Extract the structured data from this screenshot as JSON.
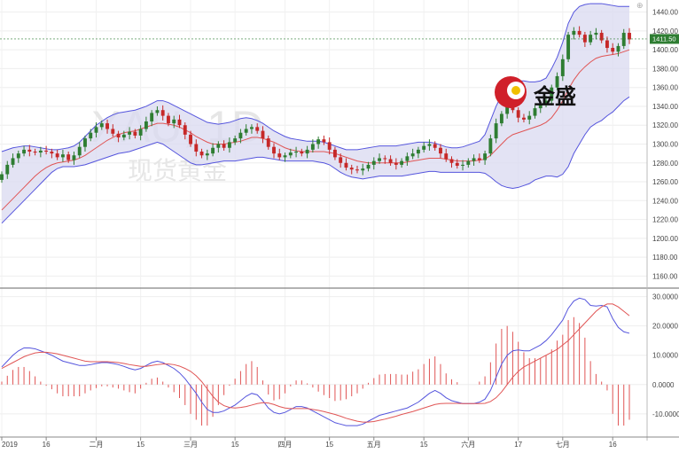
{
  "watermark": {
    "symbol": "XAU, 1D",
    "name": "现货黄金"
  },
  "logo": {
    "text": "金盛"
  },
  "top_right_glyph": "⊕",
  "colors": {
    "up": "#2e7d32",
    "down": "#c62828",
    "band_fill": "#d9d9f0",
    "band_line": "#5555dd",
    "ma_line": "#e05555",
    "macd_line": "#5555dd",
    "signal_line": "#e05555",
    "hist": "#e05555",
    "last_price": "#2e7d32"
  },
  "chart_data": [
    {
      "type": "candlestick",
      "overlay": [
        "bollinger_bands",
        "moving_average"
      ],
      "last_price_label": "1411.50",
      "y_ticks": [
        "1440.00",
        "1420.00",
        "1400.00",
        "1380.00",
        "1360.00",
        "1340.00",
        "1320.00",
        "1300.00",
        "1280.00",
        "1260.00",
        "1240.00",
        "1220.00",
        "1200.00",
        "1180.00",
        "1160.00"
      ],
      "ylim": [
        1150,
        1450
      ],
      "x_ticks": [
        "2019",
        "16",
        "二月",
        "15",
        "三月",
        "15",
        "四月",
        "15",
        "五月",
        "15",
        "六月",
        "17",
        "七月",
        "16"
      ],
      "closes": [
        1268,
        1278,
        1285,
        1290,
        1294,
        1292,
        1291,
        1293,
        1292,
        1290,
        1286,
        1289,
        1283,
        1288,
        1297,
        1306,
        1312,
        1318,
        1322,
        1316,
        1311,
        1307,
        1310,
        1313,
        1309,
        1316,
        1324,
        1333,
        1336,
        1330,
        1322,
        1326,
        1320,
        1310,
        1300,
        1292,
        1288,
        1290,
        1296,
        1300,
        1296,
        1302,
        1306,
        1312,
        1316,
        1318,
        1314,
        1306,
        1297,
        1290,
        1286,
        1288,
        1291,
        1292,
        1290,
        1294,
        1300,
        1305,
        1302,
        1294,
        1286,
        1280,
        1275,
        1273,
        1272,
        1274,
        1278,
        1282,
        1285,
        1284,
        1280,
        1278,
        1282,
        1287,
        1290,
        1294,
        1298,
        1300,
        1296,
        1290,
        1284,
        1280,
        1277,
        1278,
        1282,
        1285,
        1283,
        1290,
        1306,
        1322,
        1332,
        1340,
        1336,
        1328,
        1326,
        1330,
        1338,
        1342,
        1346,
        1360,
        1372,
        1390,
        1416,
        1420,
        1416,
        1408,
        1416,
        1418,
        1410,
        1402,
        1398,
        1404,
        1418,
        1411
      ],
      "bollinger_upper": [
        1292,
        1294,
        1296,
        1297,
        1298,
        1298,
        1297,
        1296,
        1295,
        1294,
        1294,
        1295,
        1296,
        1298,
        1302,
        1308,
        1314,
        1320,
        1324,
        1328,
        1331,
        1333,
        1334,
        1335,
        1336,
        1338,
        1340,
        1343,
        1346,
        1346,
        1344,
        1341,
        1338,
        1335,
        1332,
        1329,
        1326,
        1323,
        1322,
        1321,
        1322,
        1323,
        1325,
        1327,
        1328,
        1327,
        1325,
        1322,
        1318,
        1314,
        1311,
        1308,
        1306,
        1305,
        1304,
        1303,
        1303,
        1303,
        1302,
        1300,
        1298,
        1296,
        1294,
        1294,
        1294,
        1295,
        1296,
        1297,
        1298,
        1298,
        1298,
        1298,
        1299,
        1300,
        1301,
        1302,
        1302,
        1302,
        1301,
        1299,
        1297,
        1296,
        1296,
        1297,
        1299,
        1301,
        1303,
        1310,
        1325,
        1340,
        1352,
        1362,
        1366,
        1367,
        1367,
        1366,
        1366,
        1367,
        1370,
        1380,
        1392,
        1408,
        1428,
        1440,
        1446,
        1448,
        1449,
        1449,
        1449,
        1448,
        1447,
        1446,
        1446,
        1446
      ],
      "bollinger_lower": [
        1216,
        1222,
        1228,
        1234,
        1240,
        1246,
        1252,
        1258,
        1264,
        1270,
        1274,
        1276,
        1276,
        1276,
        1277,
        1278,
        1280,
        1282,
        1284,
        1286,
        1288,
        1290,
        1291,
        1292,
        1294,
        1296,
        1298,
        1300,
        1302,
        1300,
        1296,
        1292,
        1288,
        1284,
        1280,
        1278,
        1278,
        1279,
        1280,
        1281,
        1282,
        1282,
        1282,
        1283,
        1284,
        1285,
        1286,
        1286,
        1285,
        1284,
        1283,
        1282,
        1282,
        1282,
        1282,
        1282,
        1282,
        1281,
        1280,
        1278,
        1274,
        1270,
        1267,
        1265,
        1264,
        1263,
        1264,
        1265,
        1266,
        1266,
        1266,
        1266,
        1266,
        1267,
        1268,
        1269,
        1270,
        1271,
        1271,
        1270,
        1270,
        1270,
        1270,
        1270,
        1270,
        1270,
        1270,
        1269,
        1265,
        1260,
        1256,
        1254,
        1253,
        1254,
        1256,
        1258,
        1262,
        1264,
        1266,
        1266,
        1265,
        1268,
        1276,
        1290,
        1300,
        1310,
        1318,
        1322,
        1325,
        1330,
        1334,
        1340,
        1346,
        1350
      ],
      "moving_average": [
        1230,
        1236,
        1242,
        1248,
        1254,
        1260,
        1266,
        1271,
        1275,
        1278,
        1280,
        1281,
        1282,
        1283,
        1285,
        1288,
        1292,
        1296,
        1300,
        1304,
        1307,
        1310,
        1312,
        1313,
        1314,
        1316,
        1318,
        1320,
        1322,
        1322,
        1321,
        1320,
        1318,
        1315,
        1312,
        1308,
        1305,
        1302,
        1300,
        1300,
        1300,
        1301,
        1302,
        1303,
        1305,
        1307,
        1307,
        1306,
        1304,
        1302,
        1299,
        1296,
        1294,
        1293,
        1292,
        1292,
        1292,
        1292,
        1292,
        1291,
        1290,
        1288,
        1286,
        1284,
        1282,
        1281,
        1280,
        1280,
        1280,
        1280,
        1280,
        1280,
        1280,
        1281,
        1282,
        1283,
        1284,
        1285,
        1285,
        1285,
        1284,
        1283,
        1282,
        1282,
        1282,
        1282,
        1283,
        1284,
        1288,
        1294,
        1300,
        1306,
        1310,
        1312,
        1314,
        1316,
        1318,
        1320,
        1323,
        1328,
        1336,
        1346,
        1358,
        1368,
        1376,
        1382,
        1387,
        1391,
        1393,
        1394,
        1395,
        1396,
        1398,
        1400
      ]
    },
    {
      "type": "macd",
      "y_ticks": [
        "30.0000",
        "20.0000",
        "10.0000",
        "0.0000",
        "-10.0000"
      ],
      "ylim": [
        -17,
        32
      ],
      "macd": [
        6,
        8,
        10,
        11.5,
        12.5,
        12.5,
        12.2,
        11.5,
        10.8,
        10,
        9,
        8,
        7.5,
        7,
        6.5,
        6.5,
        6.8,
        7.2,
        7.5,
        7.5,
        7.2,
        6.8,
        6.2,
        5.5,
        5,
        5.5,
        6.5,
        7.5,
        8,
        7.5,
        6.5,
        5.5,
        4,
        2,
        -0.5,
        -3,
        -6,
        -8.5,
        -9.5,
        -9.5,
        -9,
        -8,
        -7,
        -5.5,
        -4,
        -3,
        -3.5,
        -5.5,
        -8,
        -9.5,
        -10,
        -9.5,
        -8.5,
        -7.5,
        -7.5,
        -8,
        -9,
        -10,
        -11,
        -12,
        -13,
        -13.5,
        -14,
        -14,
        -14,
        -13.5,
        -12.5,
        -11.5,
        -10.5,
        -10,
        -9.5,
        -9,
        -8.5,
        -8,
        -7,
        -6,
        -4.5,
        -3,
        -2,
        -3,
        -4.5,
        -5.5,
        -6,
        -6.5,
        -6.5,
        -6.5,
        -6,
        -5,
        -2,
        2.5,
        7,
        10,
        11.5,
        11.8,
        11.5,
        11.5,
        12.5,
        13.5,
        15,
        17,
        19.5,
        22,
        26,
        28.5,
        29.5,
        29,
        27,
        26.8,
        27,
        26.5,
        22.5,
        19.5,
        18,
        17.5
      ],
      "signal": [
        5.5,
        6.5,
        7.5,
        8.5,
        9.5,
        10.2,
        10.8,
        11,
        11,
        10.8,
        10.5,
        10,
        9.5,
        9,
        8.5,
        8,
        7.8,
        7.8,
        7.8,
        7.8,
        7.7,
        7.5,
        7.2,
        6.8,
        6.5,
        6.2,
        6.2,
        6.5,
        6.8,
        7,
        7,
        6.8,
        6.3,
        5.5,
        4.5,
        3,
        1,
        -1.5,
        -4,
        -6,
        -7.2,
        -7.8,
        -8,
        -7.8,
        -7.5,
        -7,
        -6.5,
        -6.2,
        -6.3,
        -6.8,
        -7.5,
        -8,
        -8.2,
        -8.2,
        -8.2,
        -8.2,
        -8.5,
        -8.8,
        -9.2,
        -9.7,
        -10.2,
        -10.8,
        -11.5,
        -12,
        -12.5,
        -12.8,
        -12.8,
        -12.6,
        -12.2,
        -11.8,
        -11.3,
        -10.8,
        -10.2,
        -9.7,
        -9.2,
        -8.6,
        -8,
        -7.4,
        -6.8,
        -6.5,
        -6.4,
        -6.4,
        -6.4,
        -6.5,
        -6.5,
        -6.5,
        -6.5,
        -6.4,
        -5.8,
        -4.5,
        -2.5,
        0,
        2.5,
        4.5,
        6,
        7,
        8,
        9,
        10,
        11,
        12,
        13.5,
        15,
        17,
        19,
        21,
        23,
        25,
        26.5,
        27.5,
        27.5,
        26.5,
        25,
        23.5
      ]
    }
  ]
}
